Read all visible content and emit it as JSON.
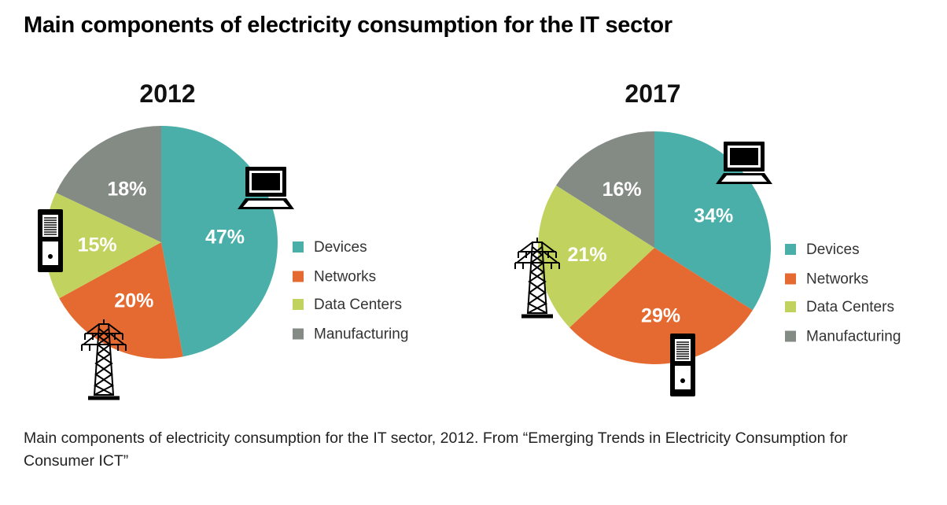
{
  "title": "Main components of electricity consumption for the IT sector",
  "caption": "Main components of electricity consumption for the IT sector, 2012. From “Emerging Trends in Electricity Consumption for Consumer ICT”",
  "colors": {
    "Devices": "#4aaea9",
    "Networks": "#e56a32",
    "Data Centers": "#c1d35e",
    "Manufacturing": "#848b84"
  },
  "chart_data": [
    {
      "type": "pie",
      "title": "2012",
      "categories": [
        "Devices",
        "Networks",
        "Data Centers",
        "Manufacturing"
      ],
      "values": [
        47,
        20,
        15,
        18
      ],
      "labels": [
        "47%",
        "20%",
        "15%",
        "18%"
      ],
      "legend": [
        "Devices",
        "Networks",
        "Data Centers",
        "Manufacturing"
      ],
      "legend_position": "right"
    },
    {
      "type": "pie",
      "title": "2017",
      "categories": [
        "Devices",
        "Networks",
        "Data Centers",
        "Manufacturing"
      ],
      "values": [
        34,
        29,
        21,
        16
      ],
      "labels": [
        "34%",
        "29%",
        "21%",
        "16%"
      ],
      "legend": [
        "Devices",
        "Networks",
        "Data Centers",
        "Manufacturing"
      ],
      "legend_position": "right"
    }
  ]
}
